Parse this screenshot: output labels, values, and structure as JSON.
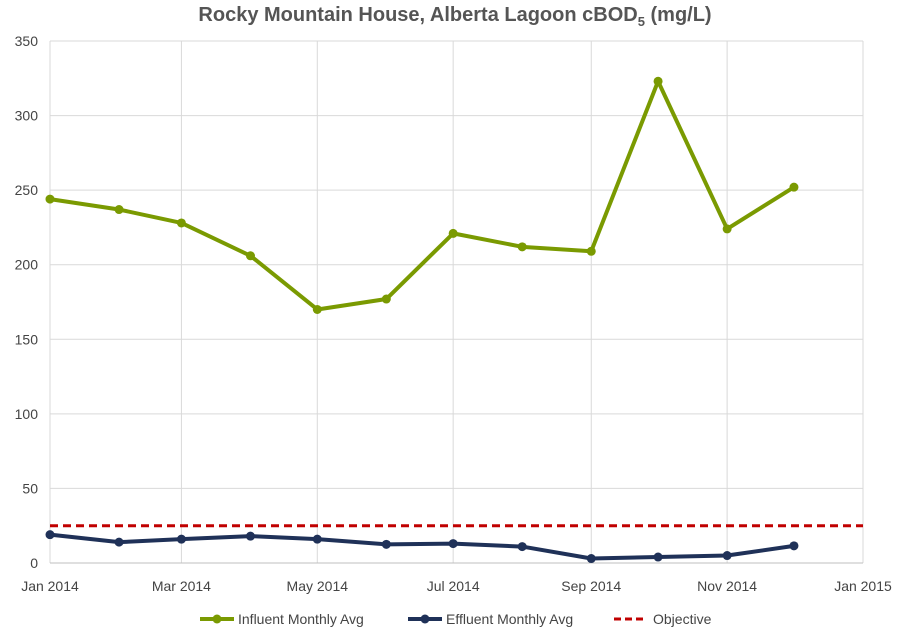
{
  "chart_data": {
    "type": "line",
    "title": "Rocky Mountain House, Alberta Lagoon cBOD",
    "title_subscript": "5",
    "title_suffix": " (mg/L)",
    "xlabel": "",
    "ylabel": "",
    "ylim": [
      0,
      350
    ],
    "yticks": [
      0,
      50,
      100,
      150,
      200,
      250,
      300,
      350
    ],
    "xlim": [
      "2014-01-01",
      "2015-01-01"
    ],
    "xticks": [
      {
        "date": "2014-01-01",
        "label": "Jan 2014"
      },
      {
        "date": "2014-03-01",
        "label": "Mar 2014"
      },
      {
        "date": "2014-05-01",
        "label": "May 2014"
      },
      {
        "date": "2014-07-01",
        "label": "Jul 2014"
      },
      {
        "date": "2014-09-01",
        "label": "Sep 2014"
      },
      {
        "date": "2014-11-01",
        "label": "Nov 2014"
      },
      {
        "date": "2015-01-01",
        "label": "Jan 2015"
      }
    ],
    "grid": true,
    "legend": "bottom",
    "x": [
      "2014-01-01",
      "2014-02-01",
      "2014-03-01",
      "2014-04-01",
      "2014-05-01",
      "2014-06-01",
      "2014-07-01",
      "2014-08-01",
      "2014-09-01",
      "2014-10-01",
      "2014-11-01",
      "2014-12-01"
    ],
    "series": [
      {
        "name": "Influent Monthly Avg",
        "color": "#7a9a01",
        "style": "solid-marker",
        "values": [
          244,
          237,
          228,
          206,
          170,
          177,
          221,
          212,
          209,
          323,
          224,
          252
        ]
      },
      {
        "name": "Effluent Monthly Avg",
        "color": "#1f3158",
        "style": "solid-marker",
        "values": [
          19,
          14,
          16,
          18,
          16,
          12.5,
          13,
          11,
          3,
          4,
          5,
          11.5
        ]
      },
      {
        "name": "Objective",
        "color": "#c00000",
        "style": "dashed",
        "constant": 25
      }
    ]
  }
}
